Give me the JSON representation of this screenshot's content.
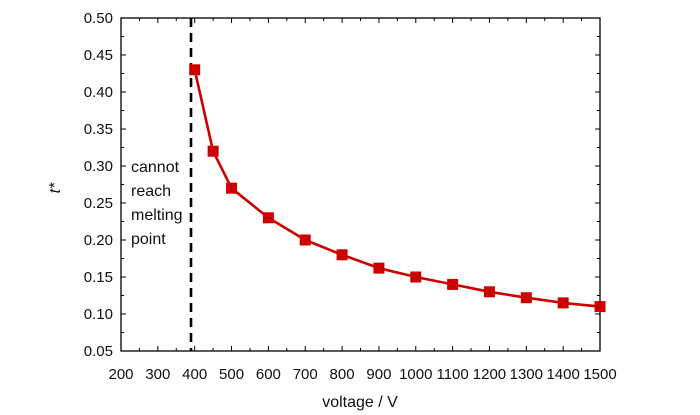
{
  "chart_data": {
    "type": "line",
    "xlabel": "voltage / V",
    "ylabel": "t*",
    "xlim": [
      200,
      1500
    ],
    "ylim": [
      0.05,
      0.5
    ],
    "x_ticks": [
      200,
      300,
      400,
      500,
      600,
      700,
      800,
      900,
      1000,
      1100,
      1200,
      1300,
      1400,
      1500
    ],
    "y_ticks": [
      "0.05",
      "0.10",
      "0.15",
      "0.20",
      "0.25",
      "0.30",
      "0.35",
      "0.40",
      "0.45",
      "0.50"
    ],
    "grid": false,
    "series": [
      {
        "color": "#cc0000",
        "marker": "square",
        "x": [
          400,
          450,
          500,
          600,
          700,
          800,
          900,
          1000,
          1100,
          1200,
          1300,
          1400,
          1500
        ],
        "y": [
          0.43,
          0.32,
          0.27,
          0.23,
          0.2,
          0.18,
          0.162,
          0.15,
          0.14,
          0.13,
          0.122,
          0.115,
          0.11
        ]
      }
    ],
    "threshold_line": {
      "x": 390,
      "style": "dashed",
      "color": "#000000"
    },
    "annotation": [
      "cannot",
      "reach",
      "melting",
      "point"
    ]
  }
}
